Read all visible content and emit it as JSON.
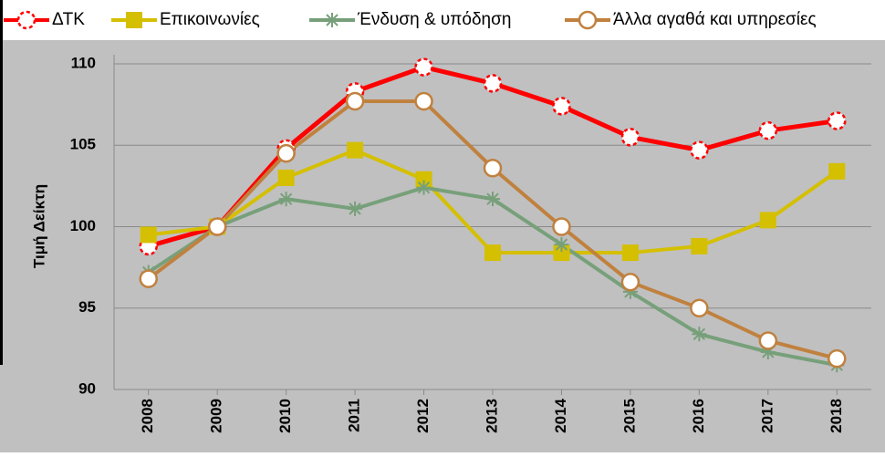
{
  "chart_data": {
    "type": "line",
    "y_label": "Τιμή Δείκτη",
    "categories": [
      "2008",
      "2009",
      "2010",
      "2011",
      "2012",
      "2013",
      "2014",
      "2015",
      "2016",
      "2017",
      "2018"
    ],
    "series": [
      {
        "name": "ΔΤΚ",
        "color": "#ff0000",
        "marker": "dashed-circle",
        "values": [
          98.8,
          100,
          104.8,
          108.3,
          109.8,
          108.8,
          107.4,
          105.5,
          104.7,
          105.9,
          106.5
        ]
      },
      {
        "name": "Επικοινωνίες",
        "color": "#d4bf00",
        "marker": "square",
        "values": [
          99.5,
          100,
          103.0,
          104.7,
          102.9,
          98.4,
          98.4,
          98.4,
          98.8,
          100.4,
          103.4
        ]
      },
      {
        "name": "Ένδυση & υπόδηση",
        "color": "#77a07a",
        "marker": "star",
        "values": [
          97.2,
          100,
          101.7,
          101.1,
          102.4,
          101.7,
          98.9,
          96.0,
          93.4,
          92.3,
          91.5
        ]
      },
      {
        "name": "Άλλα αγαθά και υπηρεσίες",
        "color": "#c0813f",
        "marker": "circle",
        "values": [
          96.8,
          100,
          104.5,
          107.7,
          107.7,
          103.6,
          100.0,
          96.6,
          95.0,
          93.0,
          91.9
        ]
      }
    ],
    "ylim": [
      90,
      110
    ],
    "yticks": [
      90,
      95,
      100,
      105,
      110
    ],
    "grid": true,
    "legend": "top"
  }
}
